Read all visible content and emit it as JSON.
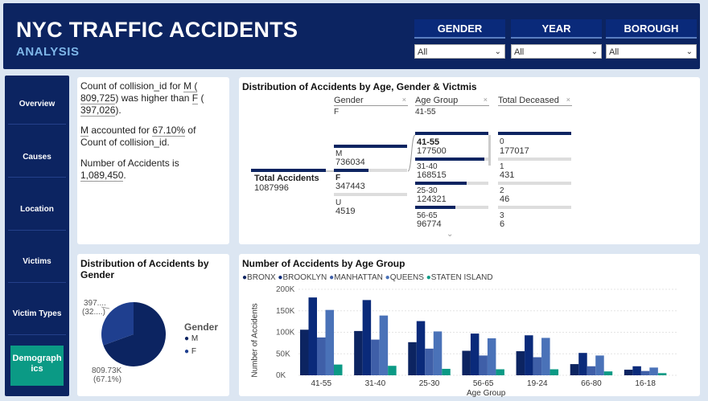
{
  "header": {
    "title": "NYC TRAFFIC ACCIDENTS",
    "subtitle": "ANALYSIS"
  },
  "filters": [
    {
      "label": "GENDER",
      "value": "All"
    },
    {
      "label": "YEAR",
      "value": "All"
    },
    {
      "label": "BOROUGH",
      "value": "All"
    }
  ],
  "nav": [
    "Overview",
    "Causes",
    "Location",
    "Victims",
    "Victim Types",
    "Demographics"
  ],
  "nav_active": {
    "line1": "Demograph",
    "line2": "ics"
  },
  "insights": {
    "l1a": "Count of collision_id for ",
    "m": "M",
    "l1b": " (",
    "m_val": "809,725",
    "l1c": ") was higher than ",
    "f": "F",
    "l1d": " (",
    "f_val": "397,026",
    "l1e": ").",
    "l2a": "M",
    "l2b": " accounted for ",
    "pct": "67.10%",
    "l2c": " of",
    "l2d": "Count of collision_id.",
    "l3a": "Number of Accidents is",
    "l3b": "1,089,450",
    "l3c": "."
  },
  "decomp": {
    "title": "Distribution of Accidents by Age, Gender & Victmis",
    "col1": "Gender",
    "col1_sel": "F",
    "col2": "Age Group",
    "col2_sel": "41-55",
    "col3": "Total Deceased",
    "root_label": "Total Accidents",
    "root_value": "1087996",
    "gender": [
      {
        "label": "M",
        "value": "736034"
      },
      {
        "label": "F",
        "value": "347443"
      },
      {
        "label": "U",
        "value": "4519"
      }
    ],
    "age": [
      {
        "label": "41-55",
        "value": "177500"
      },
      {
        "label": "31-40",
        "value": "168515"
      },
      {
        "label": "25-30",
        "value": "124321"
      },
      {
        "label": "56-65",
        "value": "96774"
      }
    ],
    "deceased": [
      {
        "label": "0",
        "value": "177017"
      },
      {
        "label": "1",
        "value": "431"
      },
      {
        "label": "2",
        "value": "46"
      },
      {
        "label": "3",
        "value": "6"
      }
    ]
  },
  "pie": {
    "title": "Distribution of Accidents by Gender",
    "legend_title": "Gender",
    "legend": [
      "M",
      "F"
    ],
    "label_f1": "397....",
    "label_f2": "(32....)",
    "label_m1": "809.73K",
    "label_m2": "(67.1%)",
    "colors": {
      "M": "#0c2461",
      "F": "#1f3f8f"
    }
  },
  "chart_data": {
    "type": "bar",
    "title": "Number of Accidents by Age Group",
    "xlabel": "Age Group",
    "ylabel": "Number of Accidents",
    "ylim": [
      0,
      200000
    ],
    "yticks": [
      "0K",
      "50K",
      "100K",
      "150K",
      "200K"
    ],
    "categories": [
      "41-55",
      "31-40",
      "25-30",
      "56-65",
      "19-24",
      "66-80",
      "16-18"
    ],
    "series": [
      {
        "name": "BRONX",
        "color": "#0c2461",
        "values": [
          106000,
          103000,
          77000,
          57000,
          56000,
          26000,
          13000
        ]
      },
      {
        "name": "BROOKLYN",
        "color": "#0a2a7a",
        "values": [
          181000,
          175000,
          126000,
          97000,
          93000,
          52000,
          21000
        ]
      },
      {
        "name": "MANHATTAN",
        "color": "#3f5fa8",
        "values": [
          88000,
          83000,
          62000,
          46000,
          42000,
          21000,
          10000
        ]
      },
      {
        "name": "QUEENS",
        "color": "#4a72b8",
        "values": [
          152000,
          139000,
          102000,
          86000,
          87000,
          46000,
          18000
        ]
      },
      {
        "name": "STATEN ISLAND",
        "color": "#0b9a85",
        "values": [
          25000,
          22000,
          15000,
          14000,
          14000,
          9000,
          5000
        ]
      }
    ]
  }
}
